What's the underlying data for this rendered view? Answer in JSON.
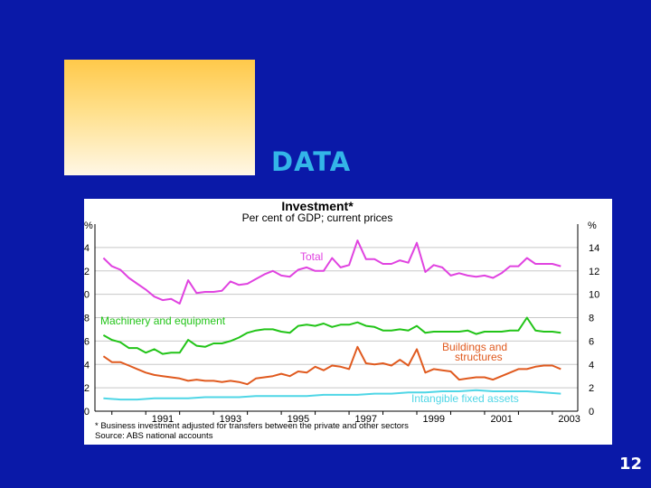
{
  "slide": {
    "heading": "DATA",
    "page_number": "12"
  },
  "chart_data": {
    "type": "line",
    "title": "Investment*",
    "subtitle": "Per cent of GDP; current prices",
    "ylabel_left": "%",
    "ylabel_right": "%",
    "ylim": [
      0,
      16
    ],
    "yticks": [
      0,
      2,
      4,
      6,
      8,
      10,
      12,
      14
    ],
    "xlim": [
      1989.5,
      2003.75
    ],
    "xticks": [
      "1991",
      "1993",
      "1995",
      "1997",
      "1999",
      "2001",
      "2003"
    ],
    "footnote": "* Business investment adjusted for transfers between the private and other sectors",
    "source": "Source: ABS national accounts",
    "grid": "horizontal",
    "series": [
      {
        "name": "Total",
        "color": "#e043e0",
        "x": [
          1989.75,
          1990,
          1990.25,
          1990.5,
          1990.75,
          1991,
          1991.25,
          1991.5,
          1991.75,
          1992,
          1992.25,
          1992.5,
          1992.75,
          1993,
          1993.25,
          1993.5,
          1993.75,
          1994,
          1994.25,
          1994.5,
          1994.75,
          1995,
          1995.25,
          1995.5,
          1995.75,
          1996,
          1996.25,
          1996.5,
          1996.75,
          1997,
          1997.25,
          1997.5,
          1997.75,
          1998,
          1998.25,
          1998.5,
          1998.75,
          1999,
          1999.25,
          1999.5,
          1999.75,
          2000,
          2000.25,
          2000.5,
          2000.75,
          2001,
          2001.25,
          2001.5,
          2001.75,
          2002,
          2002.25,
          2002.5,
          2002.75,
          2003,
          2003.25
        ],
        "values": [
          13.1,
          12.4,
          12.1,
          11.4,
          10.9,
          10.4,
          9.8,
          9.5,
          9.6,
          9.2,
          11.2,
          10.1,
          10.2,
          10.2,
          10.3,
          11.1,
          10.8,
          10.9,
          11.3,
          11.7,
          12.0,
          11.6,
          11.5,
          12.1,
          12.3,
          12.0,
          12.0,
          13.1,
          12.3,
          12.5,
          14.6,
          13.0,
          13.0,
          12.6,
          12.6,
          12.9,
          12.7,
          14.4,
          11.9,
          12.5,
          12.3,
          11.6,
          11.8,
          11.6,
          11.5,
          11.6,
          11.4,
          11.8,
          12.4,
          12.4,
          13.1,
          12.6,
          12.6,
          12.6,
          12.4
        ]
      },
      {
        "name": "Machinery and equipment",
        "color": "#22c418",
        "x": [
          1989.75,
          1990,
          1990.25,
          1990.5,
          1990.75,
          1991,
          1991.25,
          1991.5,
          1991.75,
          1992,
          1992.25,
          1992.5,
          1992.75,
          1993,
          1993.25,
          1993.5,
          1993.75,
          1994,
          1994.25,
          1994.5,
          1994.75,
          1995,
          1995.25,
          1995.5,
          1995.75,
          1996,
          1996.25,
          1996.5,
          1996.75,
          1997,
          1997.25,
          1997.5,
          1997.75,
          1998,
          1998.25,
          1998.5,
          1998.75,
          1999,
          1999.25,
          1999.5,
          1999.75,
          2000,
          2000.25,
          2000.5,
          2000.75,
          2001,
          2001.25,
          2001.5,
          2001.75,
          2002,
          2002.25,
          2002.5,
          2002.75,
          2003,
          2003.25
        ],
        "values": [
          6.5,
          6.1,
          5.9,
          5.4,
          5.4,
          5.0,
          5.3,
          4.9,
          5.0,
          5.0,
          6.1,
          5.6,
          5.5,
          5.8,
          5.8,
          6.0,
          6.3,
          6.7,
          6.9,
          7.0,
          7.0,
          6.8,
          6.7,
          7.3,
          7.4,
          7.3,
          7.5,
          7.2,
          7.4,
          7.4,
          7.6,
          7.3,
          7.2,
          6.9,
          6.9,
          7.0,
          6.9,
          7.3,
          6.7,
          6.8,
          6.8,
          6.8,
          6.8,
          6.9,
          6.6,
          6.8,
          6.8,
          6.8,
          6.9,
          6.9,
          8.0,
          6.9,
          6.8,
          6.8,
          6.7
        ]
      },
      {
        "name": "Buildings and structures",
        "color": "#e05a1f",
        "x": [
          1989.75,
          1990,
          1990.25,
          1990.5,
          1990.75,
          1991,
          1991.25,
          1991.5,
          1991.75,
          1992,
          1992.25,
          1992.5,
          1992.75,
          1993,
          1993.25,
          1993.5,
          1993.75,
          1994,
          1994.25,
          1994.5,
          1994.75,
          1995,
          1995.25,
          1995.5,
          1995.75,
          1996,
          1996.25,
          1996.5,
          1996.75,
          1997,
          1997.25,
          1997.5,
          1997.75,
          1998,
          1998.25,
          1998.5,
          1998.75,
          1999,
          1999.25,
          1999.5,
          1999.75,
          2000,
          2000.25,
          2000.5,
          2000.75,
          2001,
          2001.25,
          2001.5,
          2001.75,
          2002,
          2002.25,
          2002.5,
          2002.75,
          2003,
          2003.25
        ],
        "values": [
          4.7,
          4.2,
          4.2,
          3.9,
          3.6,
          3.3,
          3.1,
          3.0,
          2.9,
          2.8,
          2.6,
          2.7,
          2.6,
          2.6,
          2.5,
          2.6,
          2.5,
          2.3,
          2.8,
          2.9,
          3.0,
          3.2,
          3.0,
          3.4,
          3.3,
          3.8,
          3.5,
          3.9,
          3.8,
          3.6,
          5.5,
          4.1,
          4.0,
          4.1,
          3.9,
          4.4,
          3.9,
          5.3,
          3.3,
          3.6,
          3.5,
          3.4,
          2.7,
          2.8,
          2.9,
          2.9,
          2.7,
          3.0,
          3.3,
          3.6,
          3.6,
          3.8,
          3.9,
          3.9,
          3.6
        ]
      },
      {
        "name": "Intangible fixed assets",
        "color": "#4fd6e6",
        "x": [
          1989.75,
          1990.25,
          1990.75,
          1991.25,
          1991.75,
          1992.25,
          1992.75,
          1993.25,
          1993.75,
          1994.25,
          1994.75,
          1995.25,
          1995.75,
          1996.25,
          1996.75,
          1997.25,
          1997.75,
          1998.25,
          1998.75,
          1999.25,
          1999.75,
          2000.25,
          2000.75,
          2001.25,
          2001.75,
          2002.25,
          2002.75,
          2003.25
        ],
        "values": [
          1.1,
          1.0,
          1.0,
          1.1,
          1.1,
          1.1,
          1.2,
          1.2,
          1.2,
          1.3,
          1.3,
          1.3,
          1.3,
          1.4,
          1.4,
          1.4,
          1.5,
          1.5,
          1.6,
          1.6,
          1.7,
          1.7,
          1.8,
          1.7,
          1.7,
          1.7,
          1.6,
          1.5
        ]
      }
    ]
  }
}
